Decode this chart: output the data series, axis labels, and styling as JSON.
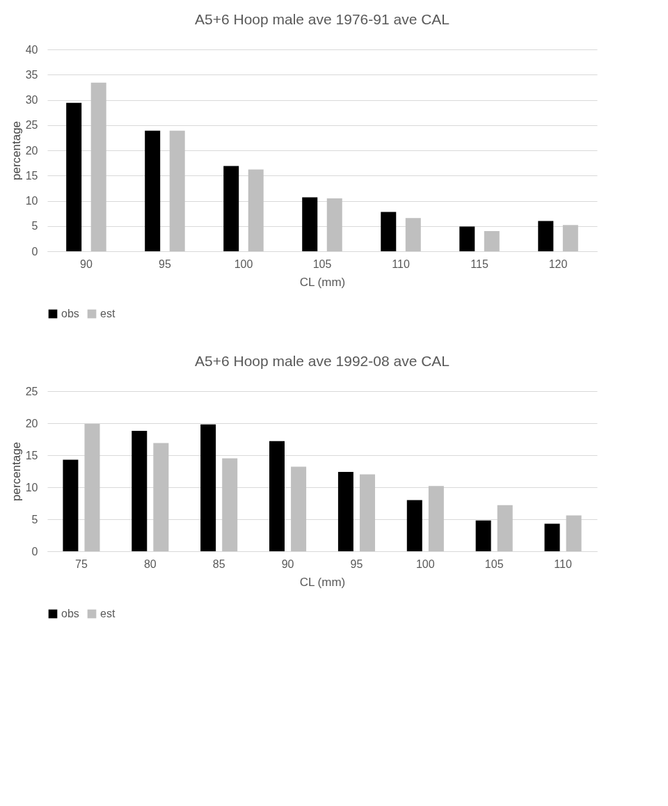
{
  "chart_data": [
    {
      "type": "bar",
      "title": "A5+6 Hoop male ave 1976-91 ave CAL",
      "xlabel": "CL (mm)",
      "ylabel": "percentage",
      "categories": [
        "90",
        "95",
        "100",
        "105",
        "110",
        "115",
        "120"
      ],
      "series": [
        {
          "name": "obs",
          "color": "#000000",
          "values": [
            29.4,
            23.9,
            16.9,
            10.7,
            7.8,
            4.9,
            6.0
          ]
        },
        {
          "name": "est",
          "color": "#bfbfbf",
          "values": [
            33.4,
            23.9,
            16.2,
            10.5,
            6.6,
            4.0,
            5.2
          ]
        }
      ],
      "ylim": [
        0,
        40
      ],
      "yticks": [
        0,
        5,
        10,
        15,
        20,
        25,
        30,
        35,
        40
      ],
      "grid": "y",
      "legend": "bottom"
    },
    {
      "type": "bar",
      "title": "A5+6 Hoop male ave 1992-08 ave CAL",
      "xlabel": "CL (mm)",
      "ylabel": "percentage",
      "categories": [
        "75",
        "80",
        "85",
        "90",
        "95",
        "100",
        "105",
        "110"
      ],
      "series": [
        {
          "name": "obs",
          "color": "#000000",
          "values": [
            14.3,
            18.8,
            19.8,
            17.2,
            12.4,
            8.0,
            4.8,
            4.3
          ]
        },
        {
          "name": "est",
          "color": "#bfbfbf",
          "values": [
            19.9,
            16.9,
            14.5,
            13.2,
            12.0,
            10.2,
            7.2,
            5.6
          ]
        }
      ],
      "ylim": [
        0,
        25
      ],
      "yticks": [
        0,
        5,
        10,
        15,
        20,
        25
      ],
      "grid": "y",
      "legend": "bottom"
    }
  ]
}
